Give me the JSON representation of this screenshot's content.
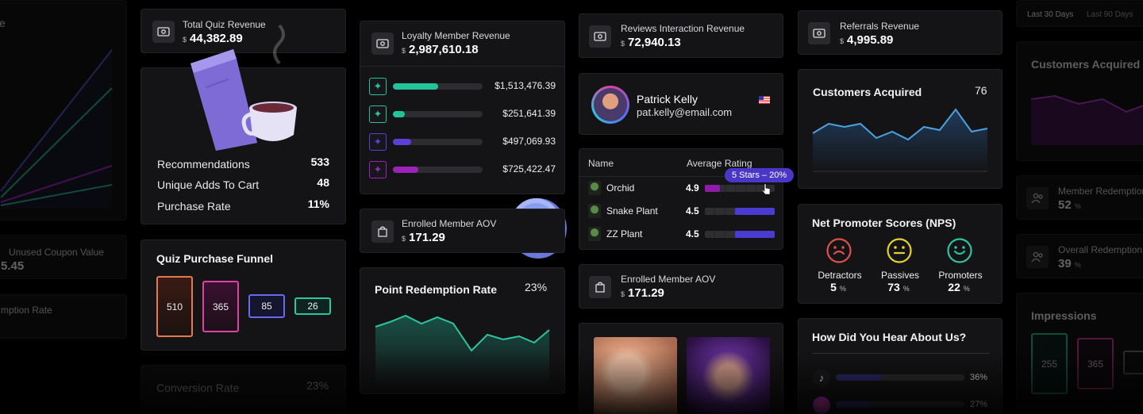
{
  "left_column": {
    "unused_coupon_label": "Unused Coupon Value",
    "unused_coupon_value": "5.45",
    "redemption_rate_label": "mption Rate",
    "top_fragment": "e"
  },
  "quiz_revenue": {
    "label": "Total Quiz Revenue",
    "currency": "$",
    "value": "44,382.89"
  },
  "quiz_stats": {
    "rows": [
      {
        "label": "Recommendations",
        "value": "533"
      },
      {
        "label": "Unique Adds To Cart",
        "value": "48"
      },
      {
        "label": "Purchase Rate",
        "value": "11%"
      }
    ]
  },
  "quiz_funnel": {
    "title": "Quiz Purchase Funnel",
    "steps": [
      "510",
      "365",
      "85",
      "26"
    ]
  },
  "conversion_rate": {
    "label": "Conversion Rate",
    "value": "23%"
  },
  "loyalty": {
    "label": "Loyalty Member Revenue",
    "currency": "$",
    "value": "2,987,610.18",
    "rows": [
      {
        "amount": "$1,513,476.39",
        "fill": 0.5,
        "color": "#22c29a"
      },
      {
        "amount": "$251,641.39",
        "fill": 0.13,
        "color": "#22c29a"
      },
      {
        "amount": "$497,069.93",
        "fill": 0.2,
        "color": "#5b3fd6"
      },
      {
        "amount": "$725,422.47",
        "fill": 0.28,
        "color": "#9b22b8"
      }
    ]
  },
  "enrolled_aov_1": {
    "label": "Enrolled Member AOV",
    "currency": "$",
    "value": "171.29"
  },
  "point_redemption": {
    "title": "Point Redemption Rate",
    "value": "23%"
  },
  "reviews_revenue": {
    "label": "Reviews Interaction Revenue",
    "currency": "$",
    "value": "72,940.13"
  },
  "profile": {
    "name": "Patrick Kelly",
    "email": "pat.kelly@email.com"
  },
  "ratings": {
    "col_name": "Name",
    "col_rating": "Average Rating",
    "tooltip": "5 Stars – 20%",
    "rows": [
      {
        "name": "Orchid",
        "rating": "4.9",
        "fill": 0.22,
        "color": "#8e1ca8"
      },
      {
        "name": "Snake Plant",
        "rating": "4.5",
        "fill": 0.57,
        "color": "#4b3bd0"
      },
      {
        "name": "ZZ Plant",
        "rating": "4.5",
        "fill": 0.57,
        "color": "#4b3bd0"
      }
    ]
  },
  "enrolled_aov_2": {
    "label": "Enrolled Member AOV",
    "currency": "$",
    "value": "171.29"
  },
  "referrals": {
    "label": "Referrals Revenue",
    "currency": "$",
    "value": "4,995.89"
  },
  "customers_acquired": {
    "title": "Customers Acquired",
    "value": "76"
  },
  "nps": {
    "title": "Net Promoter Scores (NPS)",
    "items": [
      {
        "label": "Detractors",
        "value": "5",
        "unit": "%",
        "color": "#e0504a"
      },
      {
        "label": "Passives",
        "value": "73",
        "unit": "%",
        "color": "#e8d030"
      },
      {
        "label": "Promoters",
        "value": "22",
        "unit": "%",
        "color": "#2ec4a0"
      }
    ]
  },
  "hear_about": {
    "title": "How Did You Hear About Us?",
    "rows": [
      {
        "pct": "36%",
        "fill": 0.36
      },
      {
        "pct": "27%",
        "fill": 0.27
      }
    ]
  },
  "right_column": {
    "filter_30": "Last 30 Days",
    "filter_90": "Last 90 Days",
    "customers_acquired_title": "Customers Acquired",
    "member_redemption_label": "Member Redemption",
    "member_redemption_value": "52",
    "overall_redemption_label": "Overall Redemption",
    "overall_redemption_value": "39",
    "pct_unit": "%",
    "impressions_title": "Impressions",
    "impressions_steps": [
      "255",
      "365"
    ]
  },
  "colors": {
    "teal": "#22c29a",
    "purple": "#5b3fd6",
    "magenta": "#9b22b8",
    "blue_line": "#4aa3e0"
  }
}
